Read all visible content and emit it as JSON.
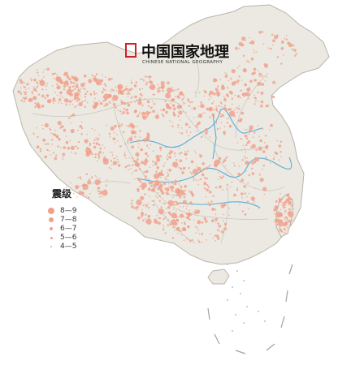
{
  "logo": {
    "title": "中国国家地理",
    "subtitle": "CHINESE NATIONAL GEOGRAPHY",
    "accent_color": "#d31f26"
  },
  "legend": {
    "title": "震级",
    "items": [
      {
        "label": "8—9"
      },
      {
        "label": "7—8"
      },
      {
        "label": "6—7"
      },
      {
        "label": "5—6"
      },
      {
        "label": "4—5"
      }
    ]
  },
  "colors": {
    "land": "#ebe9e1",
    "border": "#b9b5aa",
    "river": "#5aaed8",
    "quake": "#f0a08b",
    "quake_dense": "#ec8f78"
  }
}
